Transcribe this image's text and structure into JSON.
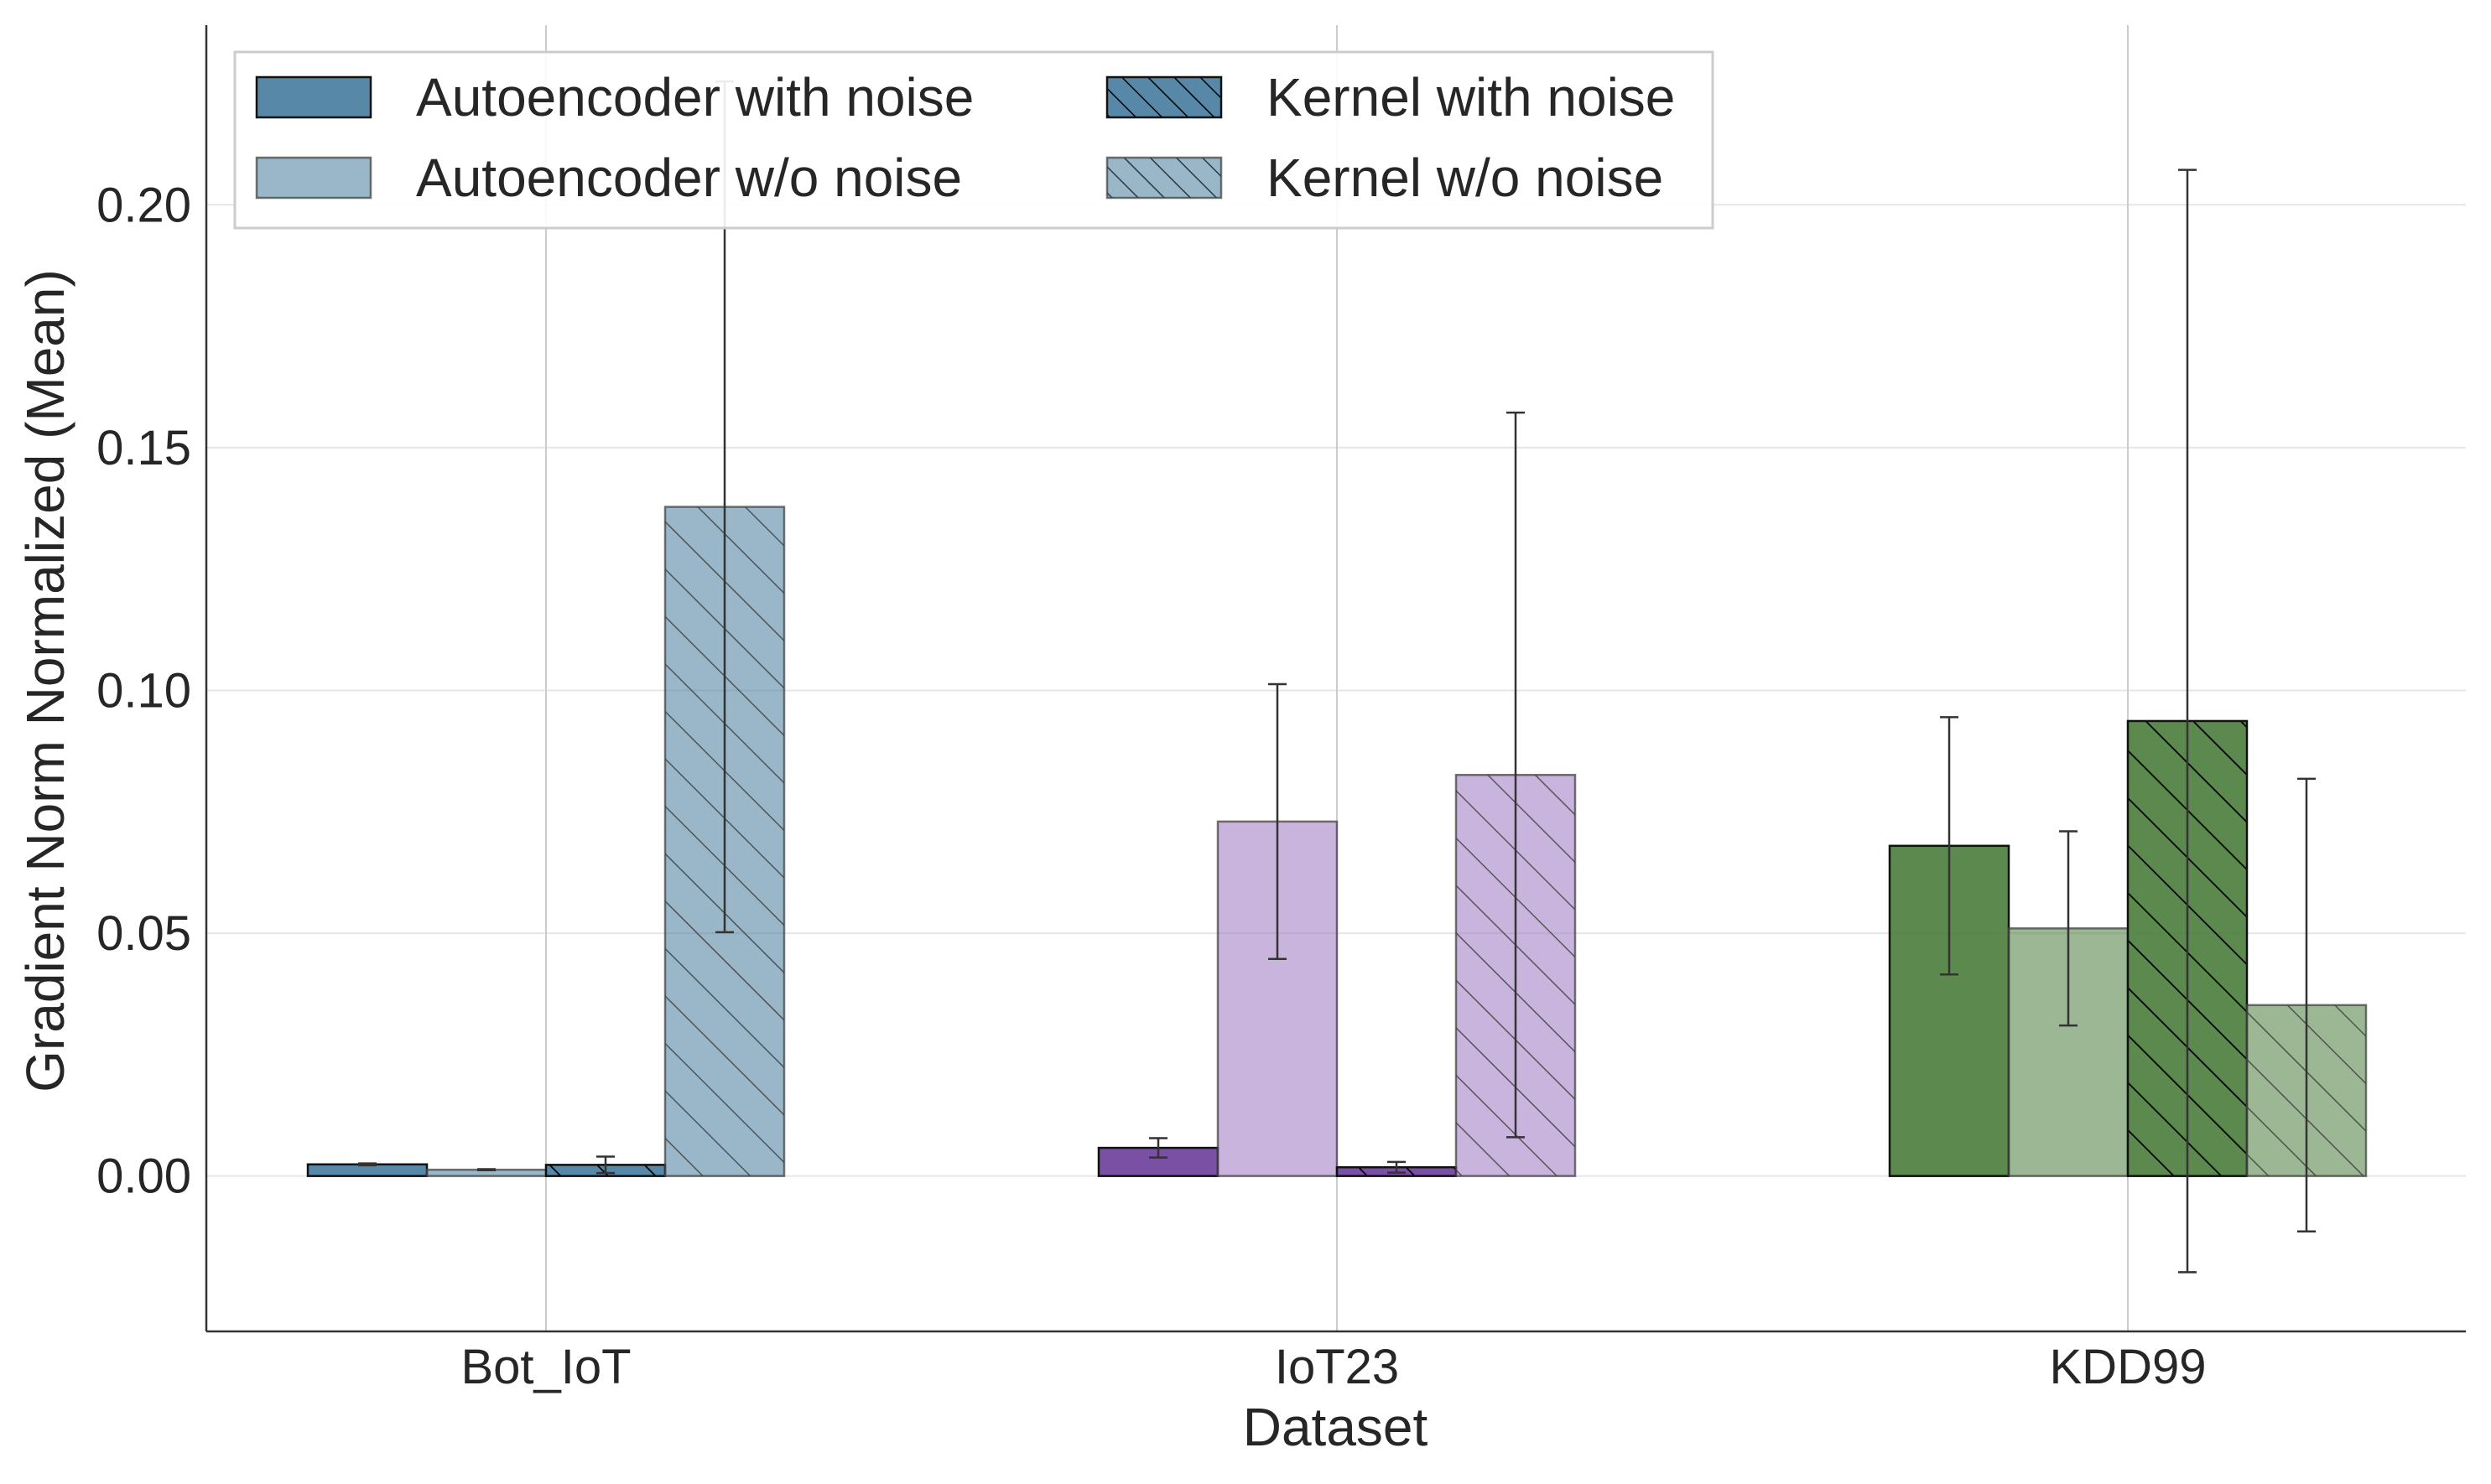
{
  "chart_data": {
    "type": "bar",
    "xlabel": "Dataset",
    "ylabel": "Gradient Norm Normalized (Mean)",
    "ylim": [
      -0.032,
      0.237
    ],
    "yticks": [
      0.0,
      0.05,
      0.1,
      0.15,
      0.2
    ],
    "ytick_labels": [
      "0.00",
      "0.05",
      "0.10",
      "0.15",
      "0.20"
    ],
    "categories": [
      "Bot_IoT",
      "IoT23",
      "KDD99"
    ],
    "grid": true,
    "legend_position": "top-left",
    "legend_columns": 2,
    "series": [
      {
        "name": "Autoencoder with noise",
        "noise": true,
        "hatch": false,
        "values": [
          0.0024,
          0.0058,
          0.068
        ],
        "errors": [
          0.0002,
          0.002,
          0.0265
        ]
      },
      {
        "name": "Autoencoder w/o noise",
        "noise": false,
        "hatch": false,
        "values": [
          0.0013,
          0.073,
          0.051
        ],
        "errors": [
          0.0001,
          0.0283,
          0.02
        ]
      },
      {
        "name": "Kernel with noise",
        "noise": true,
        "hatch": true,
        "values": [
          0.0023,
          0.0018,
          0.0937
        ],
        "errors": [
          0.0017,
          0.0011,
          0.1135
        ]
      },
      {
        "name": "Kernel w/o noise",
        "noise": false,
        "hatch": true,
        "values": [
          0.1378,
          0.0826,
          0.0352
        ],
        "errors": [
          0.0876,
          0.0746,
          0.0466
        ]
      }
    ],
    "category_colors": {
      "Bot_IoT": {
        "with_noise": "#457b9d",
        "without_noise": "#457b9d"
      },
      "IoT23": {
        "with_noise": "#6a3d9a",
        "without_noise": "#9a76c0"
      },
      "KDD99": {
        "with_noise": "#4a7c3a",
        "without_noise": "#4a7c3a"
      }
    },
    "legend_color": "#457b9d"
  }
}
